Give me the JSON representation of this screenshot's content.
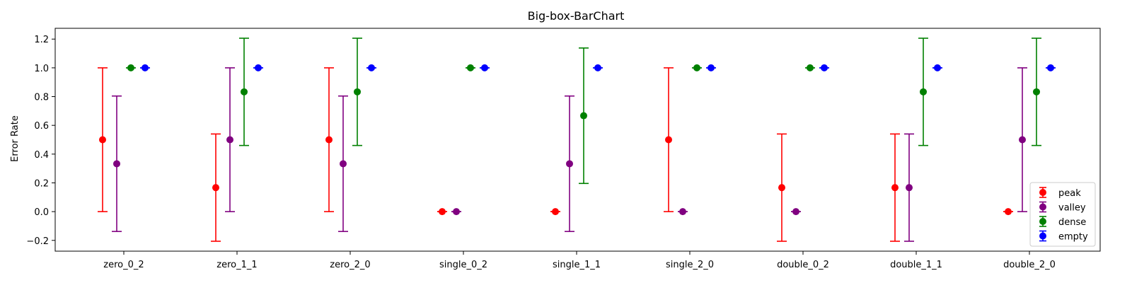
{
  "chart_data": {
    "type": "scatter",
    "title": "Big-box-BarChart",
    "xlabel": "",
    "ylabel": "Error Rate",
    "categories": [
      "zero_0_2",
      "zero_1_1",
      "zero_2_0",
      "single_0_2",
      "single_1_1",
      "single_2_0",
      "double_0_2",
      "double_1_1",
      "double_2_0"
    ],
    "ylim": [
      -0.275,
      1.275
    ],
    "yticks": [
      -0.2,
      0.0,
      0.2,
      0.4,
      0.6,
      0.8,
      1.0,
      1.2
    ],
    "ytick_labels": [
      "−0.2",
      "0.0",
      "0.2",
      "0.4",
      "0.6",
      "0.8",
      "1.0",
      "1.2"
    ],
    "grid": false,
    "legend_position": "lower-right",
    "series": [
      {
        "name": "peak",
        "color": "#ff0000",
        "values": [
          0.5,
          0.167,
          0.5,
          0.0,
          0.0,
          0.5,
          0.167,
          0.167,
          0.0
        ],
        "errors": [
          0.5,
          0.373,
          0.5,
          0.0,
          0.0,
          0.5,
          0.373,
          0.373,
          0.0
        ]
      },
      {
        "name": "valley",
        "color": "#800080",
        "values": [
          0.333,
          0.5,
          0.333,
          0.0,
          0.333,
          0.0,
          0.0,
          0.167,
          0.5
        ],
        "errors": [
          0.471,
          0.5,
          0.471,
          0.0,
          0.471,
          0.0,
          0.0,
          0.373,
          0.5
        ]
      },
      {
        "name": "dense",
        "color": "#008000",
        "values": [
          1.0,
          0.833,
          0.833,
          1.0,
          0.667,
          1.0,
          1.0,
          0.833,
          0.833
        ],
        "errors": [
          0.0,
          0.373,
          0.373,
          0.0,
          0.471,
          0.0,
          0.0,
          0.373,
          0.373
        ]
      },
      {
        "name": "empty",
        "color": "#0000ff",
        "values": [
          1.0,
          1.0,
          1.0,
          1.0,
          1.0,
          1.0,
          1.0,
          1.0,
          1.0
        ],
        "errors": [
          0.0,
          0.0,
          0.0,
          0.0,
          0.0,
          0.0,
          0.0,
          0.0,
          0.0
        ]
      }
    ]
  }
}
